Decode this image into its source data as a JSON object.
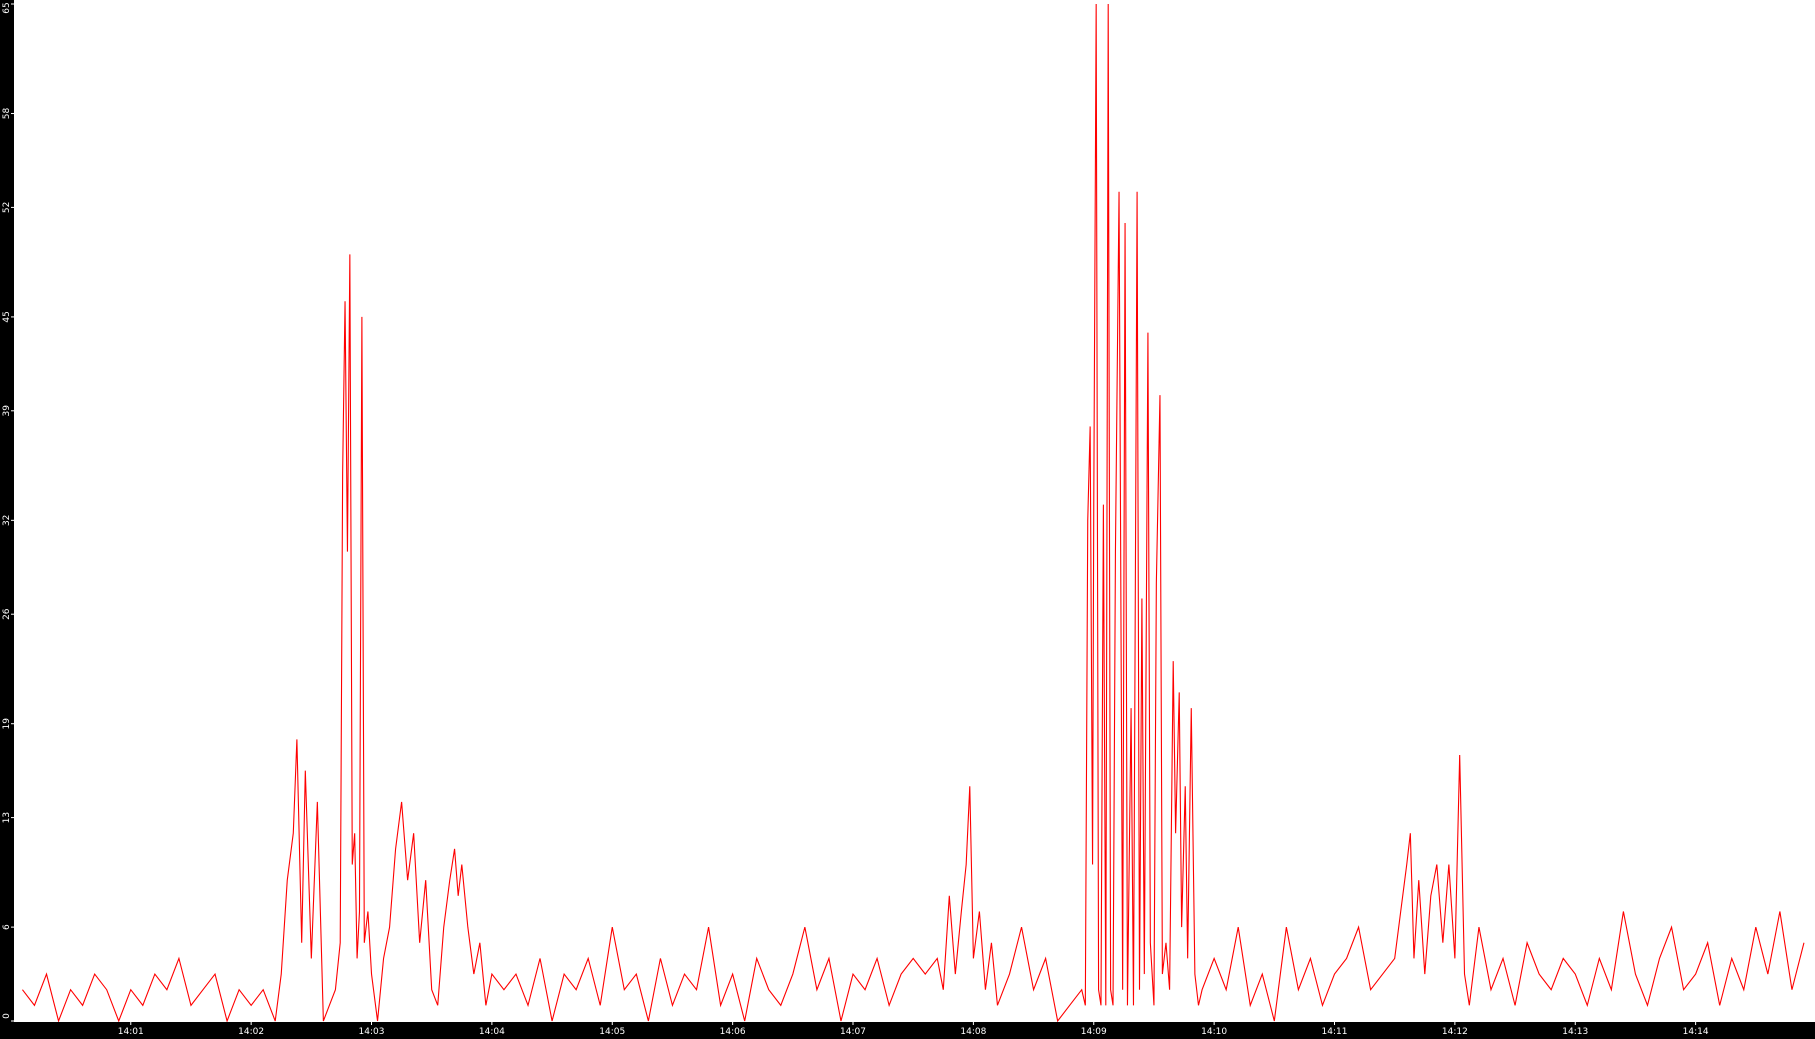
{
  "chart_data": {
    "type": "line",
    "x": [
      0.1,
      0.2,
      0.3,
      0.4,
      0.5,
      0.6,
      0.7,
      0.8,
      0.9,
      1.0,
      1.1,
      1.2,
      1.3,
      1.4,
      1.5,
      1.6,
      1.7,
      1.8,
      1.9,
      2.0,
      2.1,
      2.2,
      2.25,
      2.3,
      2.35,
      2.38,
      2.42,
      2.45,
      2.5,
      2.55,
      2.6,
      2.65,
      2.7,
      2.74,
      2.76,
      2.78,
      2.8,
      2.82,
      2.84,
      2.86,
      2.88,
      2.9,
      2.92,
      2.94,
      2.97,
      3.0,
      3.05,
      3.1,
      3.15,
      3.2,
      3.25,
      3.3,
      3.35,
      3.4,
      3.45,
      3.5,
      3.55,
      3.6,
      3.65,
      3.69,
      3.72,
      3.75,
      3.8,
      3.85,
      3.9,
      3.95,
      4.0,
      4.1,
      4.2,
      4.3,
      4.4,
      4.5,
      4.6,
      4.7,
      4.8,
      4.9,
      5.0,
      5.1,
      5.2,
      5.3,
      5.4,
      5.5,
      5.6,
      5.7,
      5.8,
      5.9,
      6.0,
      6.1,
      6.2,
      6.3,
      6.4,
      6.5,
      6.6,
      6.7,
      6.8,
      6.9,
      7.0,
      7.1,
      7.2,
      7.3,
      7.4,
      7.5,
      7.6,
      7.7,
      7.75,
      7.8,
      7.85,
      7.9,
      7.94,
      7.97,
      8.0,
      8.05,
      8.1,
      8.15,
      8.2,
      8.3,
      8.4,
      8.5,
      8.6,
      8.7,
      8.8,
      8.9,
      8.93,
      8.95,
      8.97,
      8.99,
      9.0,
      9.02,
      9.04,
      9.06,
      9.08,
      9.1,
      9.12,
      9.14,
      9.16,
      9.18,
      9.21,
      9.24,
      9.26,
      9.28,
      9.31,
      9.33,
      9.36,
      9.38,
      9.4,
      9.42,
      9.45,
      9.47,
      9.5,
      9.52,
      9.55,
      9.57,
      9.6,
      9.63,
      9.66,
      9.68,
      9.71,
      9.73,
      9.76,
      9.78,
      9.81,
      9.84,
      9.87,
      9.9,
      10.0,
      10.1,
      10.2,
      10.3,
      10.4,
      10.5,
      10.6,
      10.7,
      10.8,
      10.9,
      11.0,
      11.1,
      11.2,
      11.3,
      11.4,
      11.5,
      11.55,
      11.6,
      11.63,
      11.66,
      11.7,
      11.75,
      11.8,
      11.85,
      11.9,
      11.95,
      12.0,
      12.04,
      12.08,
      12.12,
      12.2,
      12.3,
      12.4,
      12.5,
      12.6,
      12.7,
      12.8,
      12.9,
      13.0,
      13.1,
      13.2,
      13.3,
      13.4,
      13.5,
      13.6,
      13.7,
      13.8,
      13.9,
      14.0,
      14.1,
      14.2,
      14.3,
      14.4,
      14.5,
      14.6,
      14.7,
      14.8,
      14.9
    ],
    "series": [
      {
        "color": "#ff0000",
        "values": [
          2,
          1,
          3,
          0,
          2,
          1,
          3,
          2,
          0,
          2,
          1,
          3,
          2,
          4,
          1,
          2,
          3,
          0,
          2,
          1,
          2,
          0,
          3,
          9,
          12,
          18,
          5,
          16,
          4,
          14,
          0,
          1,
          2,
          5,
          35,
          46,
          30,
          49,
          10,
          12,
          4,
          7,
          45,
          5,
          7,
          3,
          0,
          4,
          6,
          11,
          14,
          9,
          12,
          5,
          9,
          2,
          1,
          6,
          9,
          11,
          8,
          10,
          6,
          3,
          5,
          1,
          3,
          2,
          3,
          1,
          4,
          0,
          3,
          2,
          4,
          1,
          6,
          2,
          3,
          0,
          4,
          1,
          3,
          2,
          6,
          1,
          3,
          0,
          4,
          2,
          1,
          3,
          6,
          2,
          4,
          0,
          3,
          2,
          4,
          1,
          3,
          4,
          3,
          4,
          2,
          8,
          3,
          7,
          10,
          15,
          4,
          7,
          2,
          5,
          1,
          3,
          6,
          2,
          4,
          0,
          1,
          2,
          1,
          32,
          38,
          10,
          33,
          65,
          2,
          1,
          33,
          1,
          65,
          2,
          1,
          30,
          53,
          2,
          51,
          1,
          20,
          1,
          53,
          2,
          27,
          3,
          44,
          5,
          1,
          28,
          40,
          3,
          5,
          2,
          23,
          12,
          21,
          6,
          15,
          4,
          20,
          3,
          1,
          2,
          4,
          2,
          6,
          1,
          3,
          0,
          6,
          2,
          4,
          1,
          3,
          4,
          6,
          2,
          3,
          4,
          7,
          10,
          12,
          4,
          9,
          3,
          8,
          10,
          5,
          10,
          4,
          17,
          3,
          1,
          6,
          2,
          4,
          1,
          5,
          3,
          2,
          4,
          3,
          1,
          4,
          2,
          7,
          3,
          1,
          4,
          6,
          2,
          3,
          5,
          1,
          4,
          2,
          6,
          3,
          7,
          2,
          5
        ]
      }
    ],
    "xlim": [
      0,
      15
    ],
    "xticks": [
      {
        "value": 1,
        "label": "14:01"
      },
      {
        "value": 2,
        "label": "14:02"
      },
      {
        "value": 3,
        "label": "14:03"
      },
      {
        "value": 4,
        "label": "14:04"
      },
      {
        "value": 5,
        "label": "14:05"
      },
      {
        "value": 6,
        "label": "14:06"
      },
      {
        "value": 7,
        "label": "14:07"
      },
      {
        "value": 8,
        "label": "14:08"
      },
      {
        "value": 9,
        "label": "14:09"
      },
      {
        "value": 10,
        "label": "14:10"
      },
      {
        "value": 11,
        "label": "14:11"
      },
      {
        "value": 12,
        "label": "14:12"
      },
      {
        "value": 13,
        "label": "14:13"
      },
      {
        "value": 14,
        "label": "14:14"
      }
    ],
    "ylim": [
      0,
      65
    ],
    "yticks": [
      0,
      6,
      13,
      19,
      26,
      32,
      39,
      45,
      52,
      58,
      65
    ]
  }
}
